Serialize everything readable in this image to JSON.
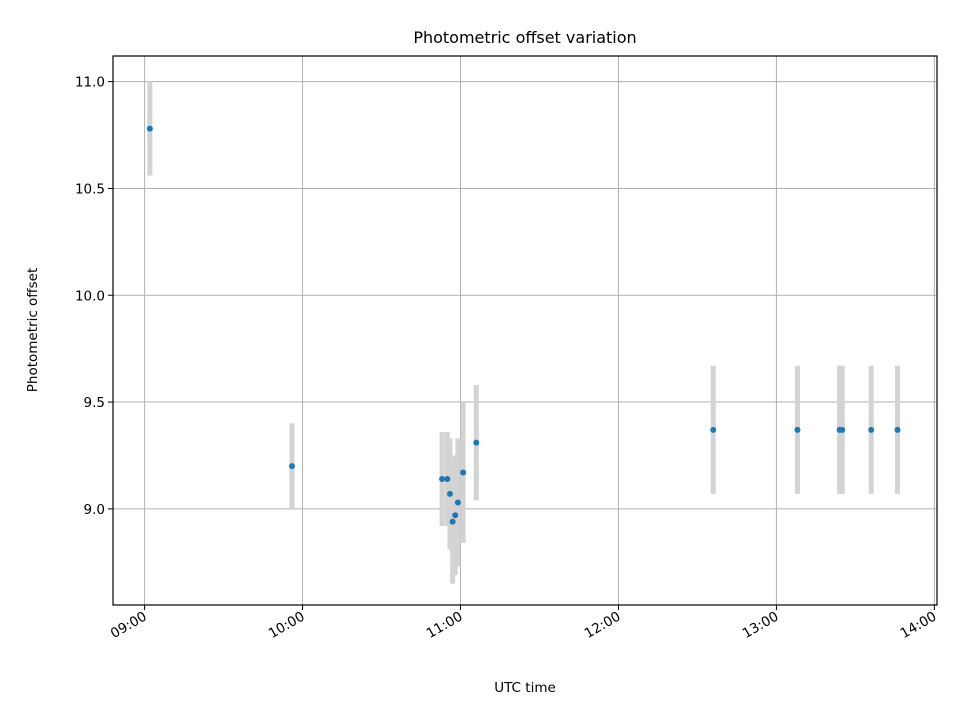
{
  "chart_data": {
    "type": "scatter",
    "title": "Photometric offset variation",
    "xlabel": "UTC time",
    "ylabel": "Photometric offset",
    "x_ticks": [
      "09:00",
      "10:00",
      "11:00",
      "12:00",
      "13:00",
      "14:00"
    ],
    "y_ticks": [
      "9.0",
      "9.5",
      "10.0",
      "10.5",
      "11.0"
    ],
    "xlim": [
      "08:48",
      "14:01"
    ],
    "ylim": [
      8.55,
      11.12
    ],
    "grid": true,
    "colors": {
      "point": "#1f77b4",
      "errorbar": "#d3d3d3",
      "grid": "#b0b0b0"
    },
    "series": [
      {
        "points": [
          {
            "x": "09:02",
            "y": 10.78,
            "err": 0.22
          },
          {
            "x": "09:56",
            "y": 9.2,
            "err": 0.2
          },
          {
            "x": "10:53",
            "y": 9.14,
            "err": 0.22
          },
          {
            "x": "10:55",
            "y": 9.14,
            "err": 0.22
          },
          {
            "x": "10:56",
            "y": 9.07,
            "err": 0.26
          },
          {
            "x": "10:57",
            "y": 8.94,
            "err": 0.29
          },
          {
            "x": "10:58",
            "y": 8.97,
            "err": 0.28
          },
          {
            "x": "10:59",
            "y": 9.03,
            "err": 0.3
          },
          {
            "x": "11:01",
            "y": 9.17,
            "err": 0.33
          },
          {
            "x": "11:06",
            "y": 9.31,
            "err": 0.27
          },
          {
            "x": "12:36",
            "y": 9.37,
            "err": 0.3
          },
          {
            "x": "13:08",
            "y": 9.37,
            "err": 0.3
          },
          {
            "x": "13:24",
            "y": 9.37,
            "err": 0.3
          },
          {
            "x": "13:25",
            "y": 9.37,
            "err": 0.3
          },
          {
            "x": "13:36",
            "y": 9.37,
            "err": 0.3
          },
          {
            "x": "13:46",
            "y": 9.37,
            "err": 0.3
          }
        ]
      }
    ]
  }
}
